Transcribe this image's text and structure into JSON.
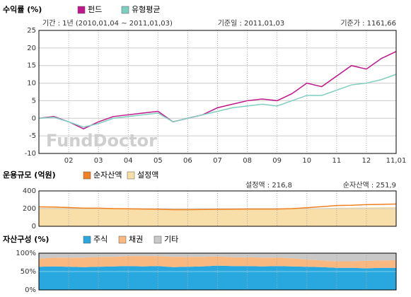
{
  "chart_data": [
    {
      "type": "line",
      "title": "수익률 (%)",
      "watermark": "FundDoctor",
      "info": [
        "기간 : 1년 (2010,01,04 ~ 2011,01,03)",
        "기준일 : 2011,01,03",
        "기준가 : 1161,66"
      ],
      "categories": [
        null,
        null,
        "02",
        null,
        "03",
        null,
        "04",
        null,
        "05",
        null,
        "06",
        null,
        "07",
        null,
        "08",
        null,
        "09",
        null,
        "10",
        null,
        "11",
        null,
        "12",
        null,
        "11,01"
      ],
      "series": [
        {
          "name": "펀드",
          "color": "#c0168c",
          "values": [
            0,
            0.5,
            -1,
            -3,
            -1,
            0.5,
            1,
            1.5,
            2,
            -1,
            0,
            1,
            3,
            4,
            5,
            5.5,
            5,
            7,
            10,
            9,
            12,
            15,
            14,
            17,
            19
          ]
        },
        {
          "name": "유형평균",
          "color": "#7fcfc0",
          "values": [
            0,
            0.3,
            -1,
            -2.5,
            -1.5,
            0,
            0.5,
            1,
            1.5,
            -1,
            0,
            1,
            2,
            3,
            3.5,
            4,
            3.5,
            5,
            6.5,
            6.5,
            8,
            9.5,
            10,
            11,
            12.5
          ]
        }
      ],
      "ylim": [
        -10,
        25
      ],
      "yticks": [
        -10,
        -5,
        0,
        5,
        10,
        15,
        20,
        25
      ],
      "grid": true
    },
    {
      "type": "area",
      "title": "운용규모 (억원)",
      "info": [
        "설정액 : 216,8",
        "순자산액 : 251,9"
      ],
      "series": [
        {
          "name": "순자산액",
          "color": "#f08020",
          "style": "line",
          "values": [
            220,
            218,
            212,
            205,
            205,
            200,
            198,
            195,
            193,
            188,
            188,
            190,
            192,
            193,
            195,
            195,
            195,
            200,
            210,
            222,
            235,
            238,
            245,
            248,
            251.9
          ]
        },
        {
          "name": "설정액",
          "color": "#f8dea8",
          "style": "area",
          "values": [
            210,
            210,
            208,
            205,
            205,
            203,
            200,
            198,
            198,
            196,
            196,
            196,
            197,
            198,
            198,
            198,
            198,
            198,
            200,
            205,
            210,
            212,
            214,
            215,
            216.8
          ]
        }
      ],
      "ylim": [
        0,
        400
      ],
      "yticks": [
        0,
        200,
        400
      ],
      "grid": true
    },
    {
      "type": "stacked_area",
      "title": "자산구성 (%)",
      "series": [
        {
          "name": "주식",
          "color": "#29a8e0",
          "values": [
            63,
            64,
            63,
            62,
            63,
            64,
            65,
            64,
            65,
            62,
            63,
            64,
            66,
            65,
            65,
            64,
            65,
            64,
            63,
            62,
            60,
            60,
            59,
            60,
            60
          ]
        },
        {
          "name": "채권",
          "color": "#f8b880",
          "values": [
            22,
            24,
            25,
            26,
            27,
            26,
            27,
            28,
            27,
            28,
            27,
            26,
            25,
            24,
            24,
            24,
            23,
            22,
            20,
            18,
            18,
            18,
            20,
            20,
            21
          ]
        },
        {
          "name": "기타",
          "color": "#c8c8c8",
          "values": [
            15,
            12,
            12,
            12,
            10,
            10,
            8,
            8,
            8,
            10,
            10,
            10,
            9,
            11,
            11,
            12,
            12,
            14,
            17,
            20,
            22,
            22,
            21,
            20,
            19
          ]
        }
      ],
      "ylim": [
        0,
        100
      ],
      "yticks": [
        {
          "value": 0,
          "label": "0%"
        },
        {
          "value": 50,
          "label": "50%"
        },
        {
          "value": 100,
          "label": "100%"
        }
      ],
      "grid": true
    }
  ]
}
